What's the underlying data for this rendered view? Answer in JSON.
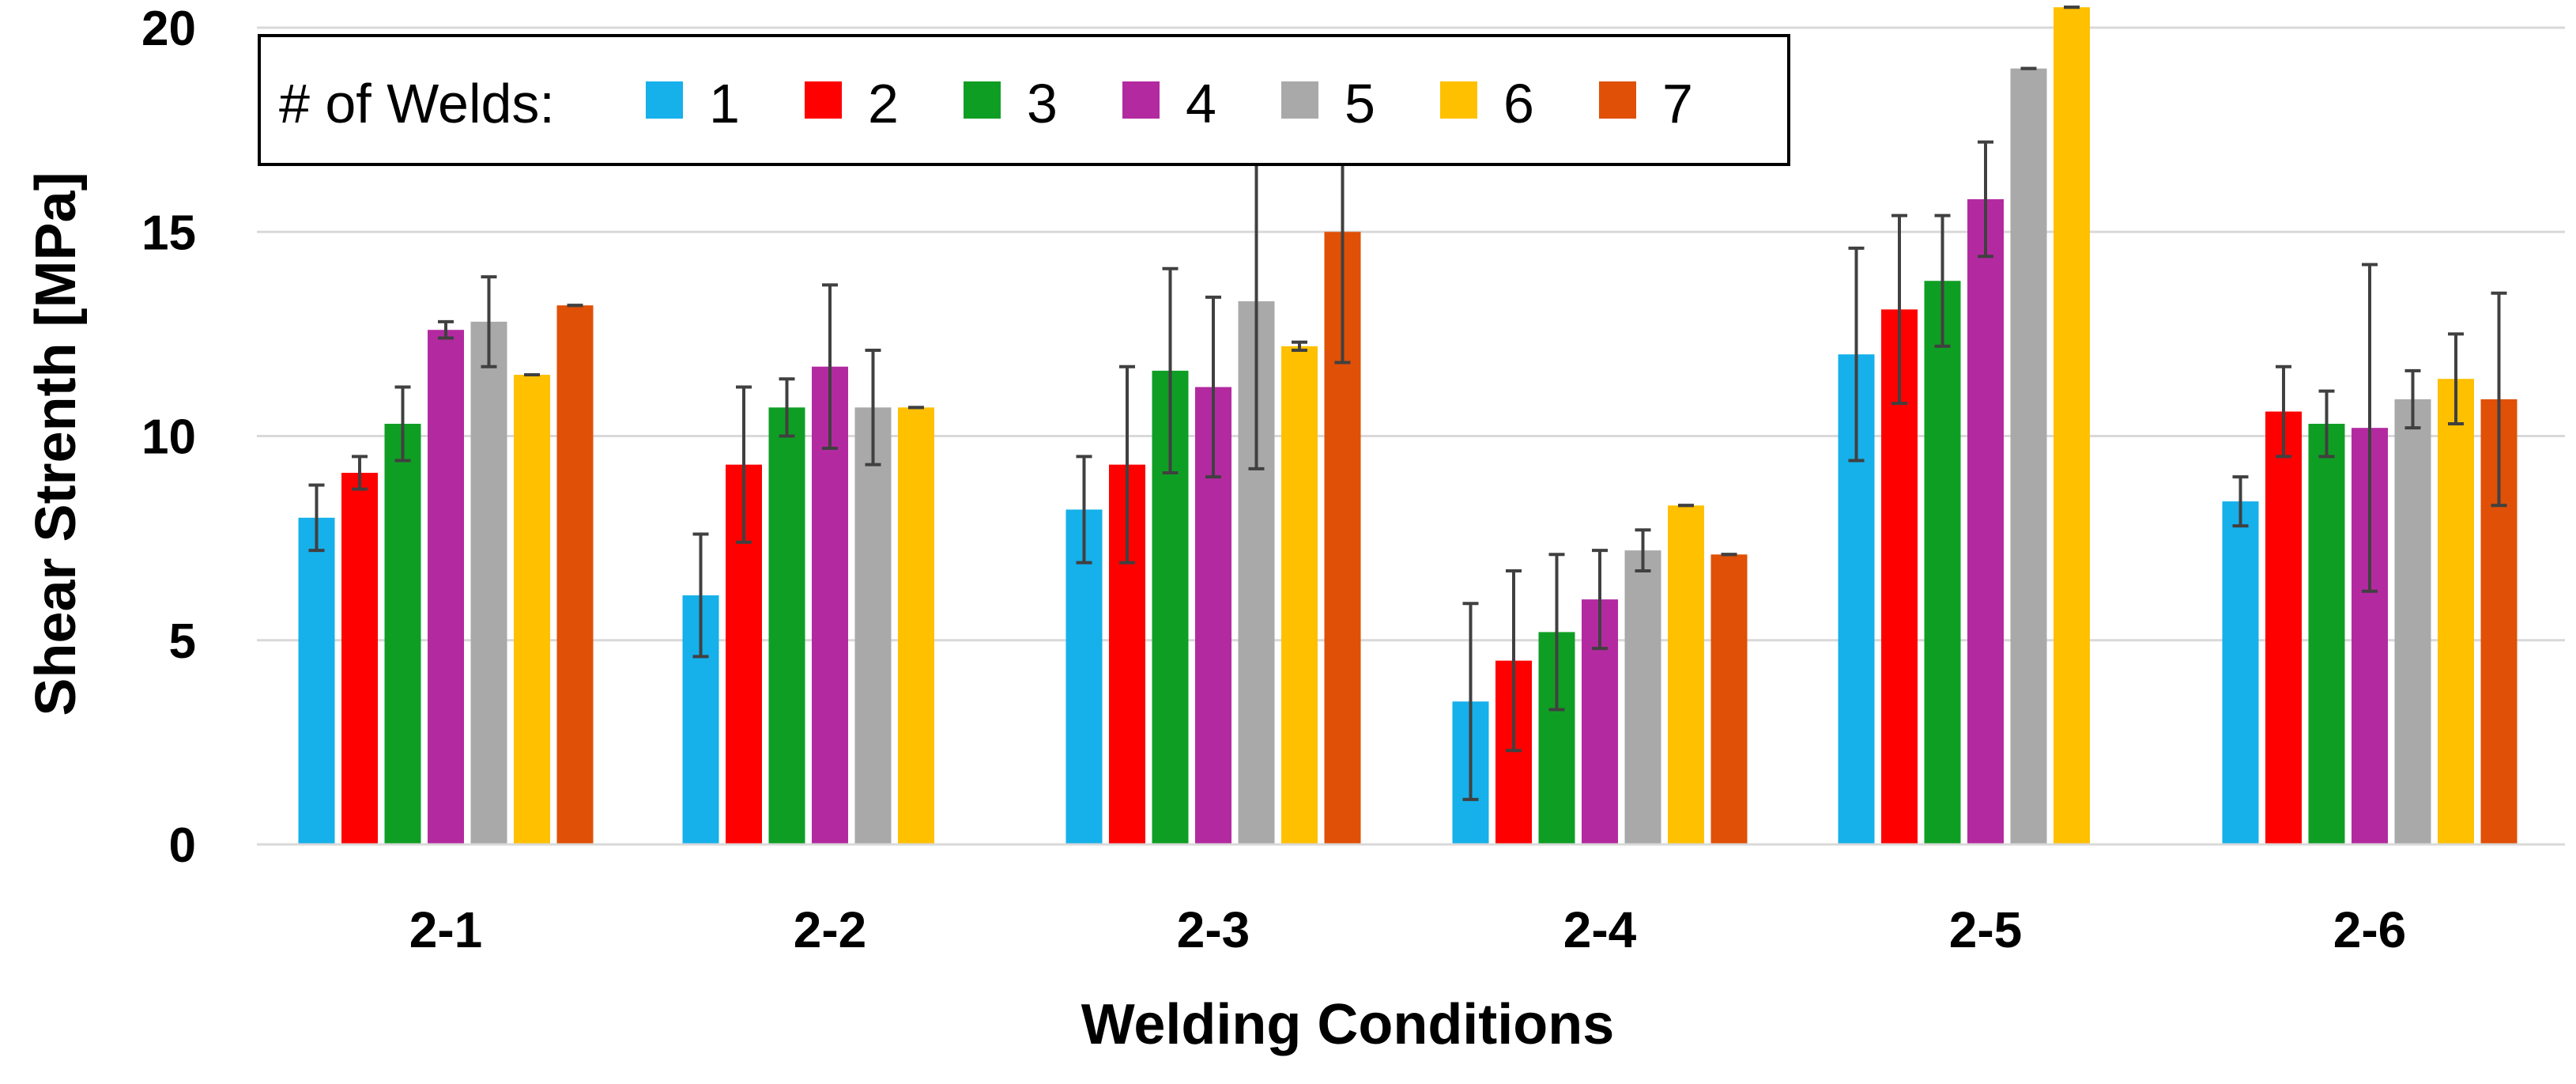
{
  "chart_data": {
    "type": "bar",
    "title": "",
    "xlabel": "Welding Conditions",
    "ylabel": "Shear Strenth [MPa]",
    "ylim": [
      0,
      20
    ],
    "yticks": [
      0,
      5,
      10,
      15,
      20
    ],
    "grid": true,
    "legend_position": "top-left",
    "legend_title": "# of Welds:",
    "categories": [
      "2-1",
      "2-2",
      "2-3",
      "2-4",
      "2-5",
      "2-6"
    ],
    "series": [
      {
        "name": "1",
        "color": "#16B0EA",
        "values": [
          8.0,
          6.1,
          8.2,
          3.5,
          12.0,
          8.4
        ],
        "errors": [
          0.8,
          1.5,
          1.3,
          2.4,
          2.6,
          0.6
        ]
      },
      {
        "name": "2",
        "color": "#FF0000",
        "values": [
          9.1,
          9.3,
          9.3,
          4.5,
          13.1,
          10.6
        ],
        "errors": [
          0.4,
          1.9,
          2.4,
          2.2,
          2.3,
          1.1
        ]
      },
      {
        "name": "3",
        "color": "#0F9E24",
        "values": [
          10.3,
          10.7,
          11.6,
          5.2,
          13.8,
          10.3
        ],
        "errors": [
          0.9,
          0.7,
          2.5,
          1.9,
          1.6,
          0.8
        ]
      },
      {
        "name": "4",
        "color": "#B32AA0",
        "values": [
          12.6,
          11.7,
          11.2,
          6.0,
          15.8,
          10.2
        ],
        "errors": [
          0.2,
          2.0,
          2.2,
          1.2,
          1.4,
          4.0
        ]
      },
      {
        "name": "5",
        "color": "#A9A9A9",
        "values": [
          12.8,
          10.7,
          13.3,
          7.2,
          19.0,
          10.9
        ],
        "errors": [
          1.1,
          1.4,
          4.1,
          0.5,
          0.0,
          0.7
        ]
      },
      {
        "name": "6",
        "color": "#FFC000",
        "values": [
          11.5,
          10.7,
          12.2,
          8.3,
          20.5,
          11.4
        ],
        "errors": [
          0.0,
          0.0,
          0.1,
          0.0,
          0.0,
          1.1
        ]
      },
      {
        "name": "7",
        "color": "#E05006",
        "values": [
          13.2,
          null,
          15.0,
          7.1,
          null,
          10.9
        ],
        "errors": [
          0.0,
          null,
          3.2,
          0.0,
          null,
          2.6
        ]
      }
    ]
  }
}
